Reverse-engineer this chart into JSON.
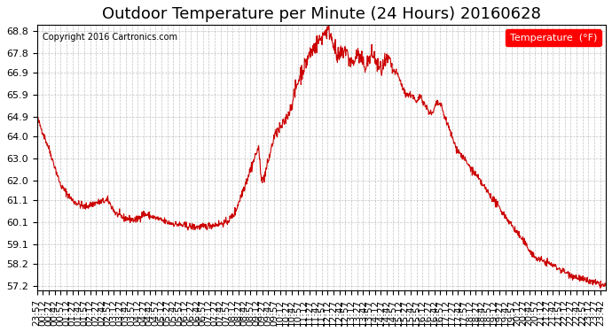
{
  "title": "Outdoor Temperature per Minute (24 Hours) 20160628",
  "copyright": "Copyright 2016 Cartronics.com",
  "legend_label": "Temperature  (°F)",
  "line_color": "#cc0000",
  "background_color": "#ffffff",
  "grid_color": "#aaaaaa",
  "ylim": [
    57.0,
    69.1
  ],
  "yticks": [
    57.2,
    58.2,
    59.1,
    60.1,
    61.1,
    62.0,
    63.0,
    64.0,
    64.9,
    65.9,
    66.9,
    67.8,
    68.8
  ],
  "xtick_interval": 15,
  "title_fontsize": 13,
  "tick_fontsize": 7.5
}
